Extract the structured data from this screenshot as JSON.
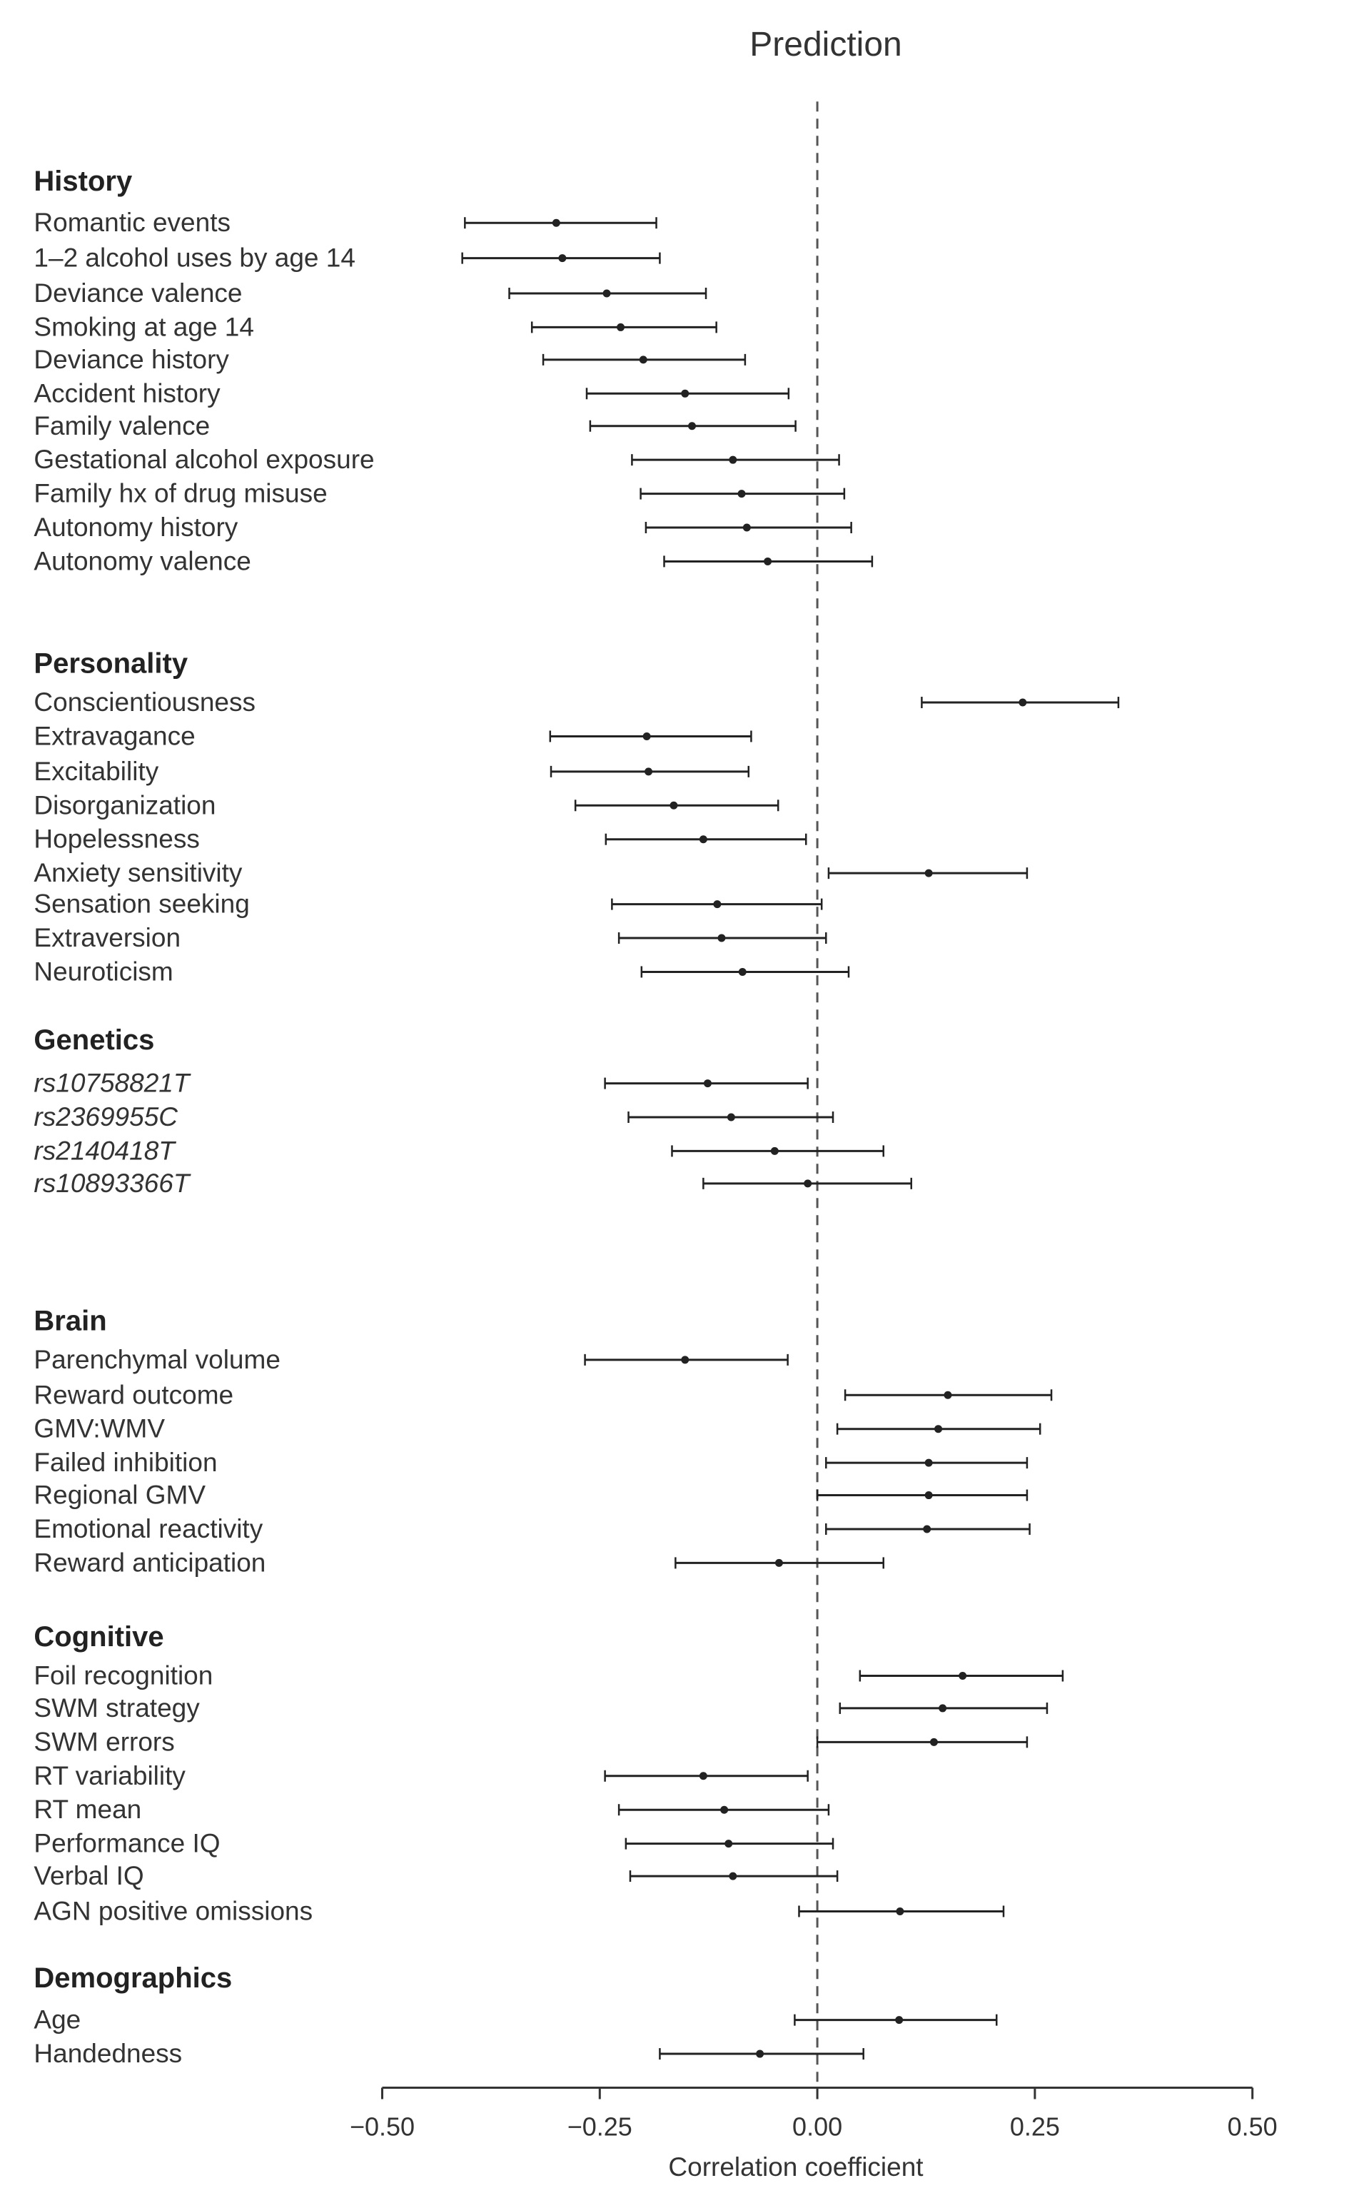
{
  "chart_data": {
    "type": "forest",
    "title": "Prediction",
    "xlabel": "Correlation coefficient",
    "xlim": [
      -0.5,
      0.5
    ],
    "xticks": [
      "−0.50",
      "−0.25",
      "0.00",
      "0.25",
      "0.50"
    ],
    "xtick_values": [
      -0.5,
      -0.25,
      0,
      0.25,
      0.5
    ],
    "reference_line": 0,
    "grid": false,
    "colors": {
      "marks": "#222222",
      "text": "#333333"
    },
    "groups": [
      {
        "name": "History",
        "items": [
          {
            "label": "Romantic events",
            "est": -0.3,
            "lo": -0.405,
            "hi": -0.185
          },
          {
            "label": "1–2 alcohol uses by age 14",
            "est": -0.293,
            "lo": -0.408,
            "hi": -0.181
          },
          {
            "label": "Deviance valence",
            "est": -0.242,
            "lo": -0.354,
            "hi": -0.128
          },
          {
            "label": "Smoking at age 14",
            "est": -0.226,
            "lo": -0.328,
            "hi": -0.116
          },
          {
            "label": "Deviance history",
            "est": -0.2,
            "lo": -0.315,
            "hi": -0.083
          },
          {
            "label": "Accident history",
            "est": -0.152,
            "lo": -0.265,
            "hi": -0.033
          },
          {
            "label": "Family valence",
            "est": -0.144,
            "lo": -0.261,
            "hi": -0.025
          },
          {
            "label": "Gestational alcohol exposure",
            "est": -0.097,
            "lo": -0.213,
            "hi": 0.025
          },
          {
            "label": "Family hx of drug misuse",
            "est": -0.087,
            "lo": -0.203,
            "hi": 0.031
          },
          {
            "label": "Autonomy history",
            "est": -0.081,
            "lo": -0.197,
            "hi": 0.039
          },
          {
            "label": "Autonomy valence",
            "est": -0.057,
            "lo": -0.176,
            "hi": 0.063
          }
        ]
      },
      {
        "name": "Personality",
        "items": [
          {
            "label": "Conscientiousness",
            "est": 0.236,
            "lo": 0.12,
            "hi": 0.346
          },
          {
            "label": "Extravagance",
            "est": -0.196,
            "lo": -0.307,
            "hi": -0.076
          },
          {
            "label": "Excitability",
            "est": -0.194,
            "lo": -0.306,
            "hi": -0.079
          },
          {
            "label": "Disorganization",
            "est": -0.165,
            "lo": -0.278,
            "hi": -0.045
          },
          {
            "label": "Hopelessness",
            "est": -0.131,
            "lo": -0.243,
            "hi": -0.013
          },
          {
            "label": "Anxiety sensitivity",
            "est": 0.128,
            "lo": 0.013,
            "hi": 0.241
          },
          {
            "label": "Sensation seeking",
            "est": -0.115,
            "lo": -0.236,
            "hi": 0.005
          },
          {
            "label": "Extraversion",
            "est": -0.11,
            "lo": -0.228,
            "hi": 0.01
          },
          {
            "label": "Neuroticism",
            "est": -0.086,
            "lo": -0.202,
            "hi": 0.036
          }
        ]
      },
      {
        "name": "Genetics",
        "italic": true,
        "items": [
          {
            "label": "rs10758821T",
            "est": -0.126,
            "lo": -0.244,
            "hi": -0.011
          },
          {
            "label": "rs2369955C",
            "est": -0.099,
            "lo": -0.217,
            "hi": 0.018
          },
          {
            "label": "rs2140418T",
            "est": -0.049,
            "lo": -0.167,
            "hi": 0.076
          },
          {
            "label": "rs10893366T",
            "est": -0.011,
            "lo": -0.131,
            "hi": 0.108
          }
        ]
      },
      {
        "name": "Brain",
        "items": [
          {
            "label": "Parenchymal volume",
            "est": -0.152,
            "lo": -0.267,
            "hi": -0.034
          },
          {
            "label": "Reward outcome",
            "est": 0.15,
            "lo": 0.032,
            "hi": 0.269
          },
          {
            "label": "GMV:WMV",
            "est": 0.139,
            "lo": 0.023,
            "hi": 0.256
          },
          {
            "label": "Failed inhibition",
            "est": 0.128,
            "lo": 0.01,
            "hi": 0.241
          },
          {
            "label": "Regional GMV",
            "est": 0.128,
            "lo": 0.0,
            "hi": 0.241
          },
          {
            "label": "Emotional reactivity",
            "est": 0.126,
            "lo": 0.01,
            "hi": 0.244
          },
          {
            "label": "Reward anticipation",
            "est": -0.044,
            "lo": -0.163,
            "hi": 0.076
          }
        ]
      },
      {
        "name": "Cognitive",
        "items": [
          {
            "label": "Foil recognition",
            "est": 0.167,
            "lo": 0.049,
            "hi": 0.282
          },
          {
            "label": "SWM strategy",
            "est": 0.144,
            "lo": 0.026,
            "hi": 0.264
          },
          {
            "label": "SWM errors",
            "est": 0.134,
            "lo": 0.0,
            "hi": 0.241
          },
          {
            "label": "RT variability",
            "est": -0.131,
            "lo": -0.244,
            "hi": -0.011
          },
          {
            "label": "RT mean",
            "est": -0.107,
            "lo": -0.228,
            "hi": 0.013
          },
          {
            "label": "Performance IQ",
            "est": -0.102,
            "lo": -0.22,
            "hi": 0.018
          },
          {
            "label": "Verbal IQ",
            "est": -0.097,
            "lo": -0.215,
            "hi": 0.023
          },
          {
            "label": "AGN positive omissions",
            "est": 0.095,
            "lo": -0.021,
            "hi": 0.214
          }
        ]
      },
      {
        "name": "Demographics",
        "items": [
          {
            "label": "Age",
            "est": 0.094,
            "lo": -0.026,
            "hi": 0.206
          },
          {
            "label": "Handedness",
            "est": -0.066,
            "lo": -0.181,
            "hi": 0.053
          }
        ]
      }
    ]
  }
}
